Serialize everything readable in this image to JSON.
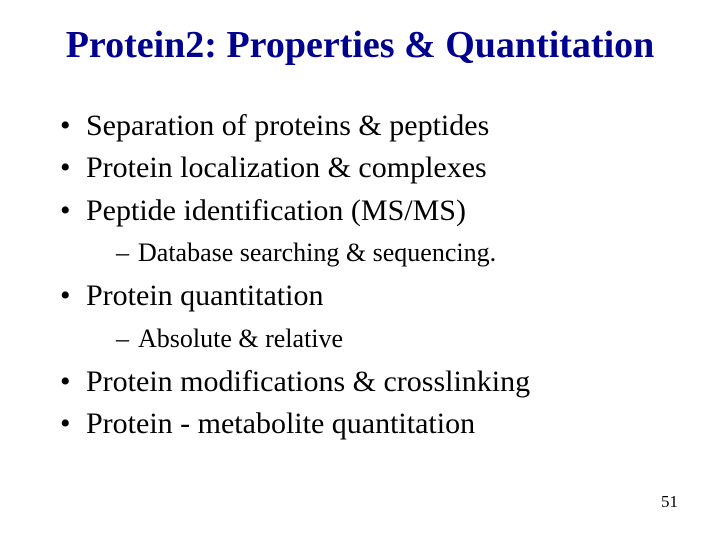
{
  "title_color": "#000090",
  "text_color": "#000000",
  "background_color": "#ffffff",
  "title": "Protein2: Properties & Quantitation",
  "bullets": {
    "b1": "Separation of proteins & peptides",
    "b2": "Protein localization & complexes",
    "b3": "Peptide identification (MS/MS)",
    "b3_sub1": "Database searching & sequencing.",
    "b4": "Protein quantitation",
    "b4_sub1": "Absolute & relative",
    "b5": "Protein modifications & crosslinking",
    "b6": "Protein - metabolite quantitation"
  },
  "page_number": "51",
  "fonts": {
    "title_size_pt": 38,
    "level1_size_pt": 30,
    "level2_size_pt": 26,
    "pagenum_size_pt": 17,
    "family": "Times New Roman",
    "title_weight": "bold"
  }
}
